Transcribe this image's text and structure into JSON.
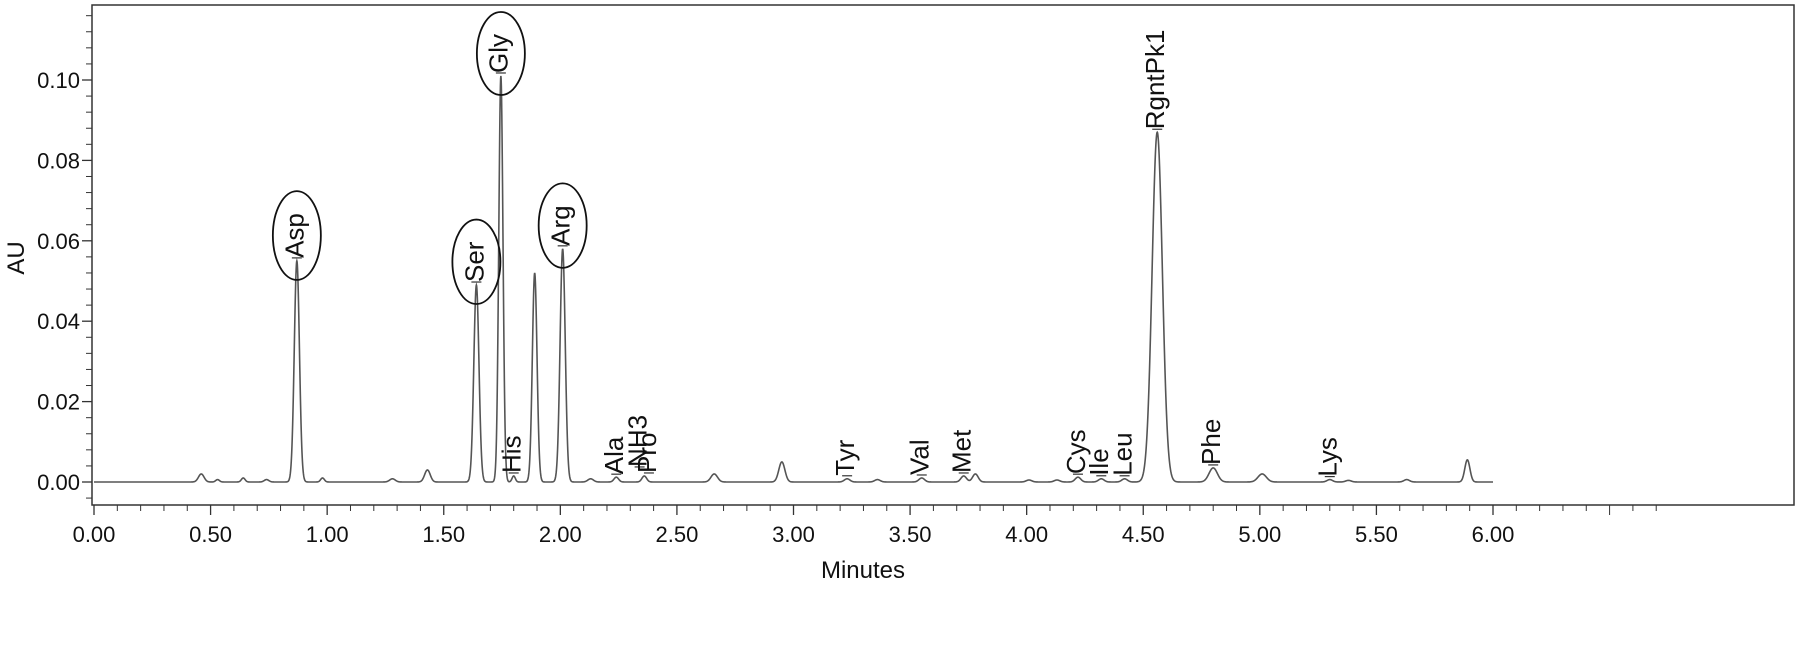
{
  "chart_data": {
    "type": "line",
    "title": "",
    "xlabel": "Minutes",
    "ylabel": "AU",
    "xlim": [
      0.0,
      6.0
    ],
    "ylim": [
      -0.005,
      0.119
    ],
    "x_ticks": [
      0.0,
      0.5,
      1.0,
      1.5,
      2.0,
      2.5,
      3.0,
      3.5,
      4.0,
      4.5,
      5.0,
      5.5,
      6.0
    ],
    "x_tick_labels": [
      "0.00",
      "0.50",
      "1.00",
      "1.50",
      "2.00",
      "2.50",
      "3.00",
      "3.50",
      "4.00",
      "4.50",
      "5.00",
      "5.50",
      "6.00"
    ],
    "y_ticks": [
      0.0,
      0.02,
      0.04,
      0.06,
      0.08,
      0.1
    ],
    "y_tick_labels": [
      "0.00",
      "0.02",
      "0.04",
      "0.06",
      "0.08",
      "0.10"
    ],
    "grid": false,
    "line_color": "#555555",
    "baseline": 0.0,
    "peaks": [
      {
        "rt": 0.46,
        "height": 0.002,
        "width": 0.012
      },
      {
        "rt": 0.53,
        "height": 0.0006,
        "width": 0.008
      },
      {
        "rt": 0.64,
        "height": 0.001,
        "width": 0.008
      },
      {
        "rt": 0.74,
        "height": 0.0006,
        "width": 0.01
      },
      {
        "rt": 0.87,
        "height": 0.055,
        "width": 0.011
      },
      {
        "rt": 0.98,
        "height": 0.001,
        "width": 0.008
      },
      {
        "rt": 1.28,
        "height": 0.0008,
        "width": 0.012
      },
      {
        "rt": 1.43,
        "height": 0.003,
        "width": 0.012
      },
      {
        "rt": 1.64,
        "height": 0.049,
        "width": 0.011
      },
      {
        "rt": 1.745,
        "height": 0.101,
        "width": 0.009
      },
      {
        "rt": 1.8,
        "height": 0.0015,
        "width": 0.007
      },
      {
        "rt": 1.89,
        "height": 0.052,
        "width": 0.01
      },
      {
        "rt": 2.01,
        "height": 0.058,
        "width": 0.011
      },
      {
        "rt": 2.13,
        "height": 0.0008,
        "width": 0.012
      },
      {
        "rt": 2.24,
        "height": 0.0012,
        "width": 0.01
      },
      {
        "rt": 2.36,
        "height": 0.0015,
        "width": 0.01
      },
      {
        "rt": 2.66,
        "height": 0.002,
        "width": 0.014
      },
      {
        "rt": 2.95,
        "height": 0.005,
        "width": 0.013
      },
      {
        "rt": 3.23,
        "height": 0.0008,
        "width": 0.012
      },
      {
        "rt": 3.36,
        "height": 0.0006,
        "width": 0.012
      },
      {
        "rt": 3.55,
        "height": 0.001,
        "width": 0.012
      },
      {
        "rt": 3.73,
        "height": 0.0015,
        "width": 0.012
      },
      {
        "rt": 3.78,
        "height": 0.002,
        "width": 0.012
      },
      {
        "rt": 4.01,
        "height": 0.0005,
        "width": 0.012
      },
      {
        "rt": 4.13,
        "height": 0.0005,
        "width": 0.012
      },
      {
        "rt": 4.22,
        "height": 0.0012,
        "width": 0.012
      },
      {
        "rt": 4.32,
        "height": 0.0008,
        "width": 0.012
      },
      {
        "rt": 4.42,
        "height": 0.0008,
        "width": 0.012
      },
      {
        "rt": 4.56,
        "height": 0.087,
        "width": 0.022
      },
      {
        "rt": 4.8,
        "height": 0.0035,
        "width": 0.018
      },
      {
        "rt": 5.01,
        "height": 0.002,
        "width": 0.018
      },
      {
        "rt": 5.3,
        "height": 0.0006,
        "width": 0.012
      },
      {
        "rt": 5.38,
        "height": 0.0004,
        "width": 0.012
      },
      {
        "rt": 5.63,
        "height": 0.0006,
        "width": 0.012
      },
      {
        "rt": 5.89,
        "height": 0.0055,
        "width": 0.011
      }
    ],
    "annotations": [
      {
        "text": "Asp",
        "x": 0.87,
        "y": 0.055,
        "circled": true
      },
      {
        "text": "Ser",
        "x": 1.64,
        "y": 0.049,
        "circled": true
      },
      {
        "text": "Gly",
        "x": 1.745,
        "y": 0.101,
        "circled": true
      },
      {
        "text": "His",
        "x": 1.8,
        "y": 0.0015,
        "circled": false
      },
      {
        "text": "Arg",
        "x": 2.01,
        "y": 0.058,
        "circled": true
      },
      {
        "text": "Ala",
        "x": 2.24,
        "y": 0.0012,
        "circled": false
      },
      {
        "text": "NH3",
        "x": 2.34,
        "y": 0.003,
        "circled": false
      },
      {
        "text": "Pro",
        "x": 2.38,
        "y": 0.0015,
        "circled": false
      },
      {
        "text": "Tyr",
        "x": 3.23,
        "y": 0.0008,
        "circled": false
      },
      {
        "text": "Val",
        "x": 3.55,
        "y": 0.001,
        "circled": false
      },
      {
        "text": "Met",
        "x": 3.73,
        "y": 0.0015,
        "circled": false
      },
      {
        "text": "Cys",
        "x": 4.22,
        "y": 0.0012,
        "circled": false
      },
      {
        "text": "Ile",
        "x": 4.32,
        "y": 0.0008,
        "circled": false
      },
      {
        "text": "Leu",
        "x": 4.42,
        "y": 0.0008,
        "circled": false
      },
      {
        "text": "RgntPk1",
        "x": 4.56,
        "y": 0.087,
        "circled": false
      },
      {
        "text": "Phe",
        "x": 4.8,
        "y": 0.0035,
        "circled": false
      },
      {
        "text": "Lys",
        "x": 5.3,
        "y": 0.0006,
        "circled": false
      }
    ]
  }
}
